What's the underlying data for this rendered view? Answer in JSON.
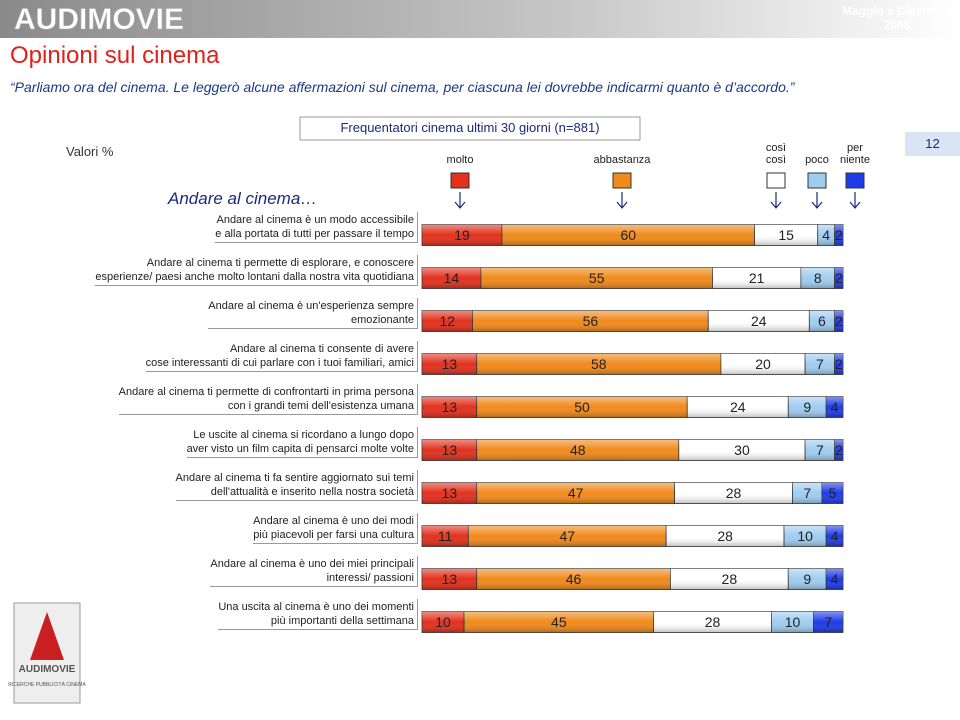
{
  "header": {
    "brand": "AUDIMOVIE",
    "date": "Maggio e Dicembre\n2008",
    "page_number": "12",
    "logo_tagline": "RICERCHE PUBBLICITÀ CINEMA"
  },
  "chart_data": {
    "type": "bar",
    "orientation": "horizontal",
    "stacked": true,
    "title": "Opinioni sul cinema",
    "subtitle": "“Parliamo ora del cinema. Le leggerò alcune affermazioni sul cinema, per ciascuna lei dovrebbe indicarmi quanto è d’accordo.”",
    "units_label": "Valori %",
    "sample_label": "Frequentatori cinema ultimi 30 giorni (n=881)",
    "section_label": "Andare al cinema…",
    "xlim": [
      0,
      100
    ],
    "categories": [
      "Andare al cinema è un modo accessibile\ne alla portata di tutti per passare il tempo",
      "Andare al cinema ti permette di esplorare, e  conoscere\nesperienze/ paesi anche molto lontani dalla nostra vita quotidiana",
      "Andare al cinema è un'esperienza sempre\nemozionante",
      "Andare al cinema ti consente di avere\ncose interessanti di cui parlare con i tuoi familiari, amici",
      "Andare al cinema ti permette di confrontarti in prima persona\ncon i grandi temi dell'esistenza umana",
      "Le uscite al cinema si ricordano a lungo dopo\naver visto un film capita di pensarci molte volte",
      "Andare al cinema ti fa sentire aggiornato sui temi\ndell'attualità e inserito nella nostra società",
      "Andare al cinema è uno dei modi\npiù piacevoli per farsi una cultura",
      "Andare al cinema è uno dei miei principali\ninteressi/ passioni",
      "Una uscita al cinema è uno dei momenti\npiù importanti della settimana"
    ],
    "series": [
      {
        "name": "molto",
        "color": "#e2311d",
        "values": [
          19,
          14,
          12,
          13,
          13,
          13,
          13,
          11,
          13,
          10
        ]
      },
      {
        "name": "abbastanza",
        "color": "#f08a1c",
        "values": [
          60,
          55,
          56,
          58,
          50,
          48,
          47,
          47,
          46,
          45
        ]
      },
      {
        "name": "così\ncosì",
        "color": "#ffffff",
        "values": [
          15,
          21,
          24,
          20,
          24,
          30,
          28,
          28,
          28,
          28
        ]
      },
      {
        "name": "poco",
        "color": "#9fcdf0",
        "values": [
          4,
          8,
          6,
          7,
          9,
          7,
          7,
          10,
          9,
          10
        ]
      },
      {
        "name": "per\nniente",
        "color": "#1f3ce8",
        "values": [
          2,
          2,
          2,
          2,
          4,
          2,
          5,
          4,
          4,
          7
        ]
      }
    ]
  }
}
